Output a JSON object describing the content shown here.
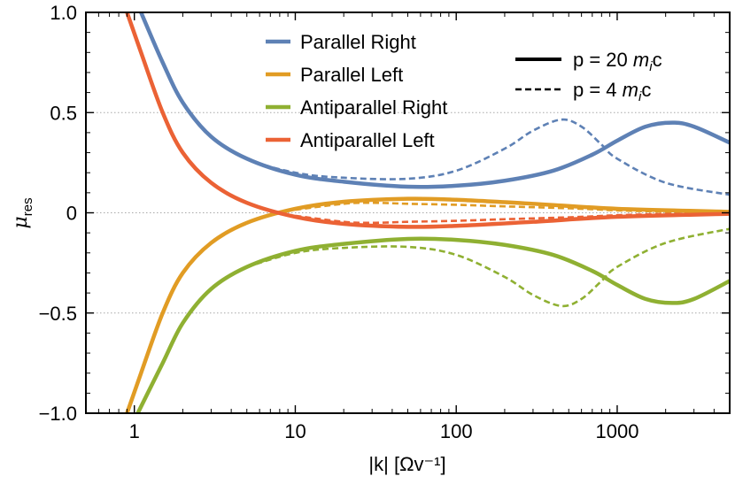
{
  "chart_data": {
    "type": "line",
    "title": "",
    "xlabel": "|k| [Ωv⁻¹]",
    "ylabel": "μres",
    "xscale": "log",
    "xlim": [
      0.5,
      5000
    ],
    "ylim": [
      -1.0,
      1.0
    ],
    "grid": "horizontal dotted at y ticks",
    "x_ticks": [
      {
        "value": 1,
        "label": "1"
      },
      {
        "value": 10,
        "label": "10"
      },
      {
        "value": 100,
        "label": "100"
      },
      {
        "value": 1000,
        "label": "1000"
      }
    ],
    "y_ticks": [
      {
        "value": 1.0,
        "label": "1.0"
      },
      {
        "value": 0.5,
        "label": "0.5"
      },
      {
        "value": 0,
        "label": "0"
      },
      {
        "value": -0.5,
        "label": "−0.5"
      },
      {
        "value": -1.0,
        "label": "−1.0"
      }
    ],
    "colors": {
      "parallel_right": "#5e81b5",
      "parallel_left": "#e19c24",
      "antiparallel_right": "#8fb032",
      "antiparallel_left": "#eb6235"
    },
    "legend_colors": {
      "title": "Parallel Right / Parallel Left / Antiparallel Right / Antiparallel Left",
      "placement": "top-center",
      "entries": [
        {
          "label": "Parallel Right",
          "color_key": "parallel_right"
        },
        {
          "label": "Parallel Left",
          "color_key": "parallel_left"
        },
        {
          "label": "Antiparallel Right",
          "color_key": "antiparallel_right"
        },
        {
          "label": "Antiparallel Left",
          "color_key": "antiparallel_left"
        }
      ]
    },
    "legend_styles": {
      "placement": "top-right",
      "entries": [
        {
          "prefix": "p = 20 ",
          "mass": "m",
          "sub": "i",
          "suffix": "c",
          "style": "solid"
        },
        {
          "prefix": "p = 4 ",
          "mass": "m",
          "sub": "i",
          "suffix": "c",
          "style": "dashed"
        }
      ]
    },
    "series": [
      {
        "name": "Parallel Right (p = 20 mic)",
        "color_key": "parallel_right",
        "style": "solid",
        "x": [
          1.1,
          1.5,
          2,
          3,
          5,
          10,
          20,
          50,
          100,
          200,
          400,
          700,
          1000,
          1500,
          2200,
          3000,
          5000
        ],
        "y": [
          1.0,
          0.75,
          0.55,
          0.38,
          0.27,
          0.19,
          0.155,
          0.13,
          0.135,
          0.16,
          0.21,
          0.29,
          0.36,
          0.43,
          0.45,
          0.43,
          0.35
        ]
      },
      {
        "name": "Parallel Right (p = 4 mic)",
        "color_key": "parallel_right",
        "style": "dashed",
        "x": [
          1.1,
          1.5,
          2,
          3,
          5,
          10,
          20,
          50,
          100,
          200,
          300,
          450,
          600,
          800,
          1000,
          2000,
          5000
        ],
        "y": [
          1.0,
          0.75,
          0.55,
          0.38,
          0.27,
          0.2,
          0.175,
          0.17,
          0.21,
          0.32,
          0.41,
          0.465,
          0.43,
          0.34,
          0.27,
          0.15,
          0.09
        ]
      },
      {
        "name": "Parallel Left (p = 20 mic)",
        "color_key": "parallel_left",
        "style": "solid",
        "x": [
          0.9,
          1.1,
          1.5,
          2,
          3,
          5,
          10,
          20,
          50,
          100,
          300,
          1000,
          5000
        ],
        "y": [
          -1.0,
          -0.8,
          -0.5,
          -0.3,
          -0.15,
          -0.05,
          0.02,
          0.055,
          0.07,
          0.065,
          0.045,
          0.02,
          0.005
        ]
      },
      {
        "name": "Parallel Left (p = 4 mic)",
        "color_key": "parallel_left",
        "style": "dashed",
        "x": [
          10,
          20,
          30,
          50,
          100,
          200,
          400,
          700,
          1000,
          2000,
          5000
        ],
        "y": [
          0.015,
          0.045,
          0.05,
          0.045,
          0.04,
          0.032,
          0.025,
          0.018,
          0.012,
          0.006,
          0.003
        ]
      },
      {
        "name": "Antiparallel Right (p = 20 mic)",
        "color_key": "antiparallel_right",
        "style": "solid",
        "x": [
          1.05,
          1.5,
          2,
          3,
          5,
          10,
          20,
          50,
          100,
          200,
          400,
          700,
          1000,
          1500,
          2200,
          3000,
          5000
        ],
        "y": [
          -1.0,
          -0.75,
          -0.55,
          -0.38,
          -0.27,
          -0.19,
          -0.155,
          -0.13,
          -0.135,
          -0.16,
          -0.21,
          -0.29,
          -0.36,
          -0.43,
          -0.45,
          -0.43,
          -0.34
        ]
      },
      {
        "name": "Antiparallel Right (p = 4 mic)",
        "color_key": "antiparallel_right",
        "style": "dashed",
        "x": [
          5,
          10,
          20,
          50,
          100,
          200,
          300,
          450,
          600,
          800,
          1000,
          2000,
          5000
        ],
        "y": [
          -0.27,
          -0.2,
          -0.175,
          -0.17,
          -0.21,
          -0.32,
          -0.41,
          -0.465,
          -0.43,
          -0.34,
          -0.27,
          -0.15,
          -0.08
        ]
      },
      {
        "name": "Antiparallel Left (p = 20 mic)",
        "color_key": "antiparallel_left",
        "style": "solid",
        "x": [
          0.9,
          1.1,
          1.5,
          2,
          3,
          5,
          10,
          20,
          50,
          100,
          300,
          1000,
          5000
        ],
        "y": [
          1.0,
          0.8,
          0.5,
          0.3,
          0.15,
          0.05,
          -0.02,
          -0.055,
          -0.07,
          -0.065,
          -0.045,
          -0.02,
          -0.005
        ]
      },
      {
        "name": "Antiparallel Left (p = 4 mic)",
        "color_key": "antiparallel_left",
        "style": "dashed",
        "x": [
          10,
          20,
          30,
          50,
          100,
          200,
          400,
          700,
          1000,
          2000,
          5000
        ],
        "y": [
          -0.015,
          -0.045,
          -0.05,
          -0.045,
          -0.04,
          -0.032,
          -0.025,
          -0.018,
          -0.012,
          -0.006,
          -0.003
        ]
      }
    ]
  }
}
